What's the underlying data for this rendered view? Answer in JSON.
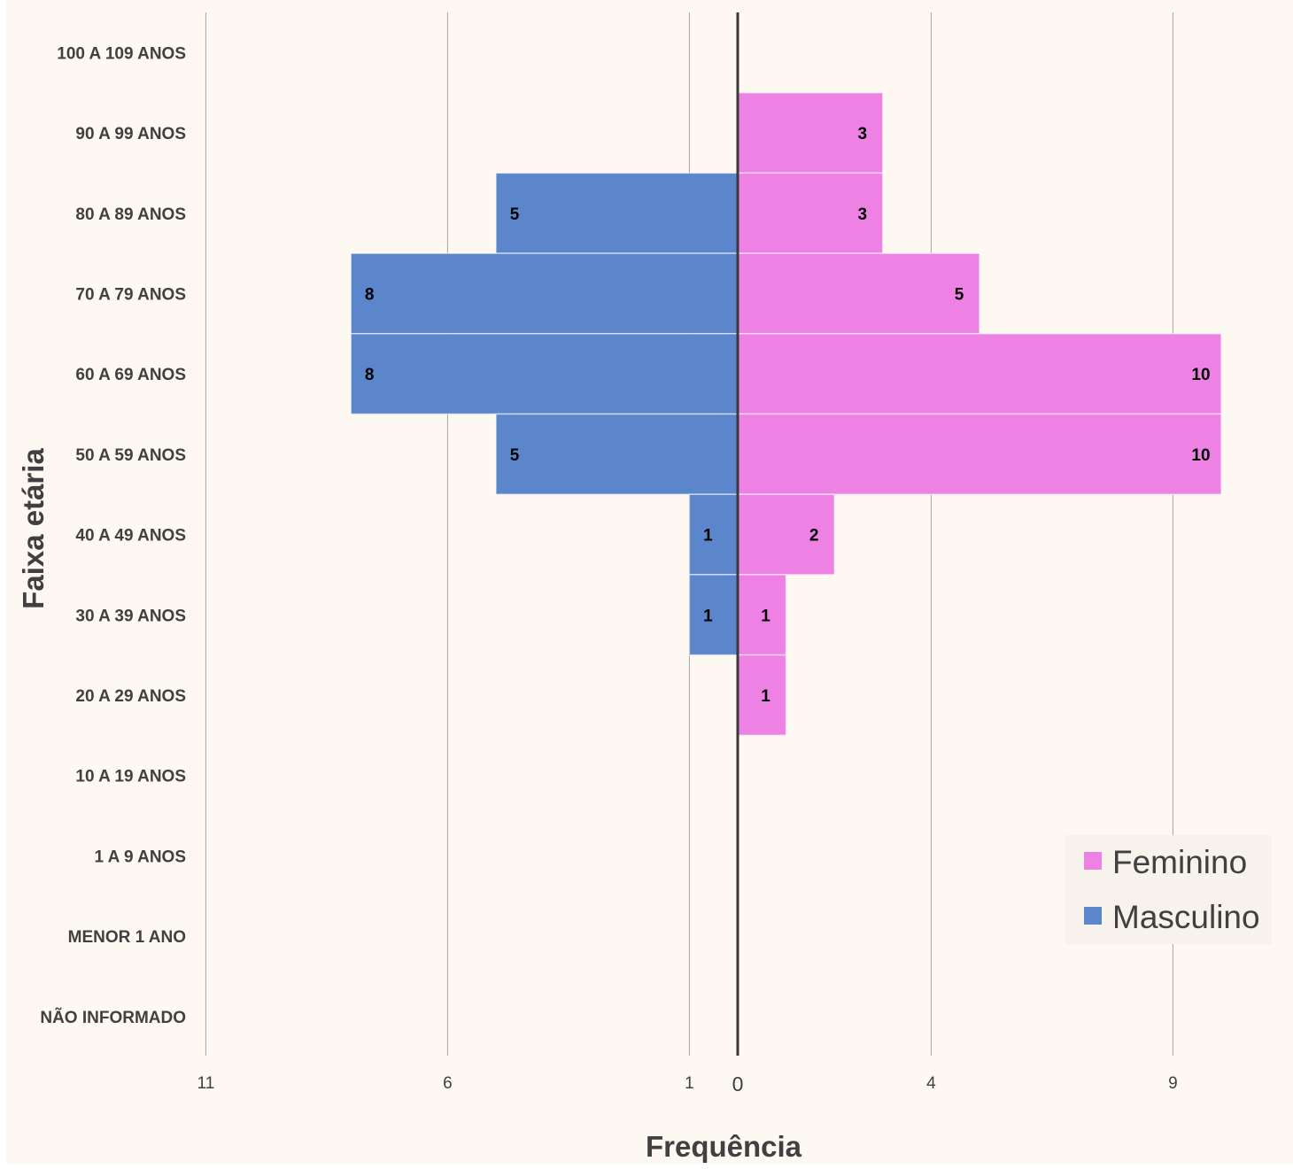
{
  "chart_data": {
    "type": "bar",
    "orientation": "horizontal",
    "subtype": "population-pyramid",
    "categories": [
      "100 A 109 ANOS",
      "90 A 99 ANOS",
      "80 A 89 ANOS",
      "70 A 79 ANOS",
      "60 A 69 ANOS",
      "50 A 59 ANOS",
      "40 A 49 ANOS",
      "30 A 39 ANOS",
      "20 A 29 ANOS",
      "10 A 19 ANOS",
      "1 A 9 ANOS",
      "MENOR 1 ANO",
      "NÃO INFORMADO"
    ],
    "series": [
      {
        "name": "Masculino",
        "side": "left",
        "color": "#5b86cc",
        "values": [
          0,
          0,
          5,
          8,
          8,
          5,
          1,
          1,
          0,
          0,
          0,
          0,
          0
        ]
      },
      {
        "name": "Feminino",
        "side": "right",
        "color": "#ee82e4",
        "values": [
          0,
          3,
          3,
          5,
          10,
          10,
          2,
          1,
          1,
          0,
          0,
          0,
          0
        ]
      }
    ],
    "xlabel": "Frequência",
    "ylabel": "Faixa etária",
    "x_ticks": [
      {
        "value": -11,
        "label": "11"
      },
      {
        "value": -6,
        "label": "6"
      },
      {
        "value": -1,
        "label": "1"
      },
      {
        "value": 0,
        "label": "0"
      },
      {
        "value": 4,
        "label": "4"
      },
      {
        "value": 9,
        "label": "9"
      }
    ],
    "xlim": [
      -11,
      9
    ],
    "grid": "vertical",
    "legend": {
      "position": "bottom-right",
      "entries": [
        "Feminino",
        "Masculino"
      ]
    },
    "background": "#fdf8f1"
  }
}
